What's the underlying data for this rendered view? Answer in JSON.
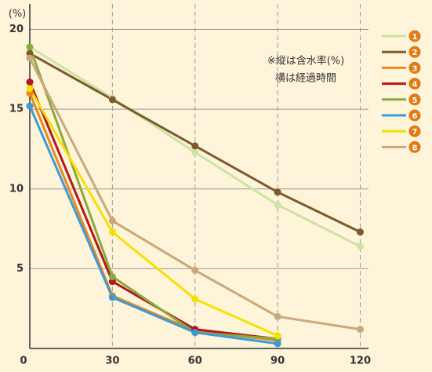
{
  "chart_data": {
    "type": "line",
    "y_label": "(%)",
    "annotations": [
      "※縦は含水率(%)",
      "横は経過時間"
    ],
    "x": [
      0,
      30,
      60,
      90,
      120
    ],
    "xlim": [
      0,
      123
    ],
    "ylim": [
      0,
      21.6
    ],
    "xticks": [
      0,
      30,
      60,
      90,
      120
    ],
    "yticks": [
      5,
      10,
      15,
      20
    ],
    "grid": true,
    "legend": "right",
    "series": [
      {
        "name": "1",
        "color": "#cde3a4",
        "values": [
          18.9,
          15.7,
          12.3,
          9.0,
          6.4
        ]
      },
      {
        "name": "2",
        "color": "#7d5a2c",
        "values": [
          18.5,
          15.6,
          12.7,
          9.8,
          7.3
        ]
      },
      {
        "name": "3",
        "color": "#e8891f",
        "values": [
          16.0,
          3.3,
          1.1,
          0.5,
          null
        ]
      },
      {
        "name": "4",
        "color": "#b3161c",
        "values": [
          16.7,
          4.2,
          1.2,
          0.6,
          null
        ]
      },
      {
        "name": "5",
        "color": "#8aab3c",
        "values": [
          18.9,
          4.5,
          1.0,
          0.6,
          null
        ]
      },
      {
        "name": "6",
        "color": "#3d9ad6",
        "values": [
          15.2,
          3.2,
          1.0,
          0.3,
          null
        ]
      },
      {
        "name": "7",
        "color": "#f5e100",
        "values": [
          16.3,
          7.3,
          3.1,
          0.8,
          null
        ]
      },
      {
        "name": "8",
        "color": "#c9a87c",
        "values": [
          18.2,
          8.0,
          4.9,
          2.0,
          1.2
        ]
      }
    ]
  }
}
